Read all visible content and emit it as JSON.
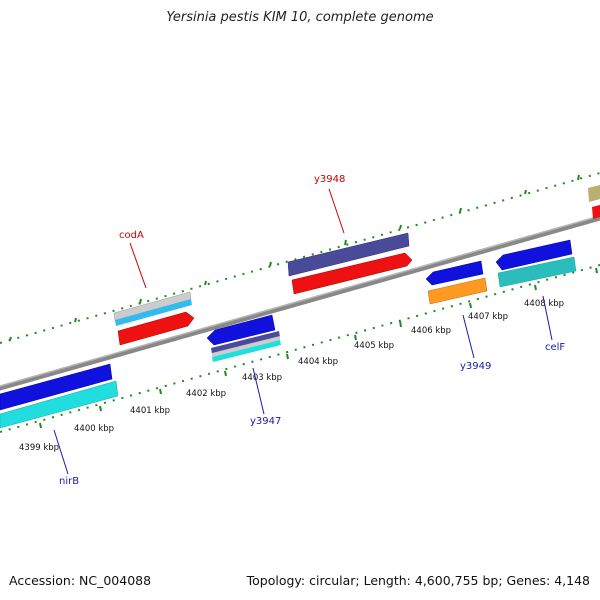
{
  "title": "Yersinia pestis KIM 10, complete genome",
  "footer": {
    "accession": "Accession: NC_004088",
    "summary": "Topology: circular; Length: 4,600,755 bp; Genes: 4,148"
  },
  "map": {
    "ticks": [
      {
        "label": "4399 kbp"
      },
      {
        "label": "4400 kbp"
      },
      {
        "label": "4401 kbp"
      },
      {
        "label": "4402 kbp"
      },
      {
        "label": "4403 kbp"
      },
      {
        "label": "4404 kbp"
      },
      {
        "label": "4405 kbp"
      },
      {
        "label": "4406 kbp"
      },
      {
        "label": "4407 kbp"
      },
      {
        "label": "4408 kbp"
      }
    ],
    "labels": [
      {
        "text": "y3948",
        "strand": "forward"
      },
      {
        "text": "codA",
        "strand": "forward"
      },
      {
        "text": "nirB",
        "strand": "reverse"
      },
      {
        "text": "y3947",
        "strand": "reverse"
      },
      {
        "text": "y3949",
        "strand": "reverse"
      },
      {
        "text": "celF",
        "strand": "reverse"
      }
    ],
    "colors": {
      "forward_label": "#cc0000",
      "reverse_label": "#1a1aa8",
      "backbone": "#888888",
      "ruler": "#1f8a1f",
      "red": "#ee1111",
      "blue": "#1111dd",
      "cyan": "#22dddd",
      "navy": "#4a4a9a",
      "orange": "#ff9922",
      "teal": "#2bbcbc",
      "olive": "#b8b070",
      "grey": "#cccccc",
      "lightblue": "#33bbee"
    }
  }
}
